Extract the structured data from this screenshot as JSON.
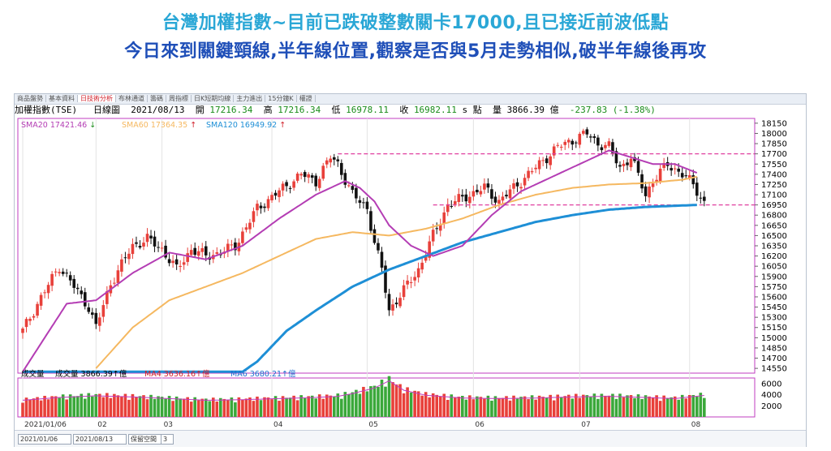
{
  "headline": {
    "line1": "台灣加權指數~目前已跌破整數關卡17000,且已接近前波低點",
    "line2": "今日來到關鍵頸線,半年線位置,觀察是否與5月走勢相似,破半年線後再攻"
  },
  "tabs": [
    "商品盤勢",
    "基本資料",
    "日技術分析",
    "布林通道",
    "籌碼",
    "周指標",
    "日K短期均線",
    "主力進出",
    "15分鐘K",
    "權證"
  ],
  "active_tab": "日技術分析",
  "info": {
    "name": "加權指數(TSE)",
    "period": "日線圖",
    "date": "2021/08/13",
    "open_label": "開",
    "open": "17216.34",
    "high_label": "高",
    "high": "17216.34",
    "low_label": "低",
    "low": "16978.11",
    "close_label": "收",
    "close": "16982.11",
    "unit_label": "s 點",
    "vol_label": "量",
    "vol": "3866.39 億",
    "change": "-237.83 (-1.38%)"
  },
  "legend": {
    "sma20": "SMA20 17421.46",
    "sma20_arrow": "↓",
    "sma60": "SMA60 17364.35",
    "sma60_arrow": "↑",
    "sma120": "SMA120 16949.92",
    "sma120_arrow": "↑"
  },
  "volume_legend": {
    "title": "成交量",
    "vol": "成交量 3866.39↑億",
    "ma4": "MA4 3636.16↑億",
    "ma6": "MA6 3680.21↑億"
  },
  "bottom": {
    "date_label": "2021/01/06",
    "from": "2021/01/06",
    "to": "2021/08/13",
    "mode": "保留空間",
    "mode_num": "3"
  },
  "colors": {
    "up": "#e8403a",
    "down": "#111111",
    "sma20": "#b43db4",
    "sma60": "#f5b860",
    "sma120": "#1e8fd6",
    "dashed": "#e040a0",
    "vol_up": "#e8403a",
    "vol_down": "#3aa83a"
  },
  "chart_data": {
    "type": "candlestick",
    "y_ticks": [
      18150,
      18000,
      17850,
      17700,
      17550,
      17400,
      17250,
      17100,
      16950,
      16800,
      16650,
      16500,
      16350,
      16200,
      16050,
      15900,
      15750,
      15600,
      15450,
      15300,
      15150,
      15000,
      14850,
      14700,
      14550
    ],
    "ylim": [
      14480,
      18220
    ],
    "x_labels": [
      "2021/01/06",
      "02",
      "03",
      "04",
      "05",
      "06",
      "07",
      "08"
    ],
    "x_label_days": [
      0,
      20,
      38,
      68,
      94,
      123,
      152,
      182
    ],
    "total_days": 198,
    "horizontal_lines": [
      17700,
      16950
    ],
    "anchors": [
      [
        0,
        15100
      ],
      [
        4,
        15500
      ],
      [
        10,
        16050
      ],
      [
        14,
        15750
      ],
      [
        18,
        15450
      ],
      [
        20,
        15150
      ],
      [
        24,
        15800
      ],
      [
        30,
        16350
      ],
      [
        34,
        16450
      ],
      [
        38,
        16300
      ],
      [
        42,
        16000
      ],
      [
        46,
        16300
      ],
      [
        50,
        16200
      ],
      [
        54,
        16250
      ],
      [
        58,
        16350
      ],
      [
        64,
        16900
      ],
      [
        70,
        17150
      ],
      [
        76,
        17400
      ],
      [
        80,
        17300
      ],
      [
        84,
        17650
      ],
      [
        86,
        17550
      ],
      [
        90,
        17100
      ],
      [
        94,
        16900
      ],
      [
        96,
        16400
      ],
      [
        98,
        16000
      ],
      [
        100,
        15400
      ],
      [
        104,
        15700
      ],
      [
        108,
        16000
      ],
      [
        112,
        16500
      ],
      [
        116,
        16950
      ],
      [
        122,
        17100
      ],
      [
        126,
        17200
      ],
      [
        130,
        17000
      ],
      [
        134,
        17200
      ],
      [
        138,
        17400
      ],
      [
        142,
        17600
      ],
      [
        146,
        17800
      ],
      [
        150,
        17900
      ],
      [
        154,
        18000
      ],
      [
        157,
        17850
      ],
      [
        160,
        17800
      ],
      [
        163,
        17500
      ],
      [
        166,
        17650
      ],
      [
        170,
        17100
      ],
      [
        172,
        17300
      ],
      [
        176,
        17550
      ],
      [
        180,
        17400
      ],
      [
        183,
        17250
      ],
      [
        186,
        16982
      ]
    ],
    "sma20_anchors": [
      [
        0,
        14500
      ],
      [
        6,
        15000
      ],
      [
        12,
        15500
      ],
      [
        20,
        15550
      ],
      [
        30,
        15950
      ],
      [
        40,
        16250
      ],
      [
        50,
        16150
      ],
      [
        60,
        16350
      ],
      [
        70,
        16750
      ],
      [
        80,
        17100
      ],
      [
        88,
        17300
      ],
      [
        92,
        17200
      ],
      [
        96,
        17000
      ],
      [
        100,
        16650
      ],
      [
        106,
        16350
      ],
      [
        112,
        16200
      ],
      [
        120,
        16350
      ],
      [
        128,
        16800
      ],
      [
        136,
        17150
      ],
      [
        144,
        17350
      ],
      [
        152,
        17550
      ],
      [
        160,
        17750
      ],
      [
        166,
        17650
      ],
      [
        172,
        17550
      ],
      [
        178,
        17550
      ],
      [
        184,
        17421
      ]
    ],
    "sma60_anchors": [
      [
        20,
        14550
      ],
      [
        30,
        15150
      ],
      [
        40,
        15550
      ],
      [
        50,
        15750
      ],
      [
        60,
        15950
      ],
      [
        70,
        16200
      ],
      [
        80,
        16450
      ],
      [
        90,
        16550
      ],
      [
        100,
        16500
      ],
      [
        110,
        16600
      ],
      [
        120,
        16750
      ],
      [
        130,
        16950
      ],
      [
        140,
        17100
      ],
      [
        150,
        17200
      ],
      [
        160,
        17250
      ],
      [
        170,
        17270
      ],
      [
        180,
        17320
      ],
      [
        184,
        17364
      ]
    ],
    "sma120_anchors": [
      [
        0,
        14500
      ],
      [
        60,
        14500
      ],
      [
        64,
        14650
      ],
      [
        72,
        15100
      ],
      [
        80,
        15400
      ],
      [
        90,
        15750
      ],
      [
        100,
        16000
      ],
      [
        110,
        16200
      ],
      [
        120,
        16400
      ],
      [
        130,
        16550
      ],
      [
        140,
        16700
      ],
      [
        150,
        16800
      ],
      [
        160,
        16880
      ],
      [
        170,
        16920
      ],
      [
        184,
        16950
      ]
    ],
    "volume": {
      "ylim": [
        0,
        7000
      ],
      "y_ticks": [
        6000,
        4000,
        2000
      ],
      "anchors": [
        [
          0,
          3000
        ],
        [
          10,
          3500
        ],
        [
          20,
          3800
        ],
        [
          30,
          3600
        ],
        [
          40,
          3300
        ],
        [
          50,
          3000
        ],
        [
          60,
          3100
        ],
        [
          70,
          3300
        ],
        [
          80,
          3500
        ],
        [
          86,
          3700
        ],
        [
          90,
          4200
        ],
        [
          96,
          5200
        ],
        [
          100,
          6500
        ],
        [
          104,
          4800
        ],
        [
          110,
          3900
        ],
        [
          120,
          3400
        ],
        [
          130,
          3300
        ],
        [
          140,
          3400
        ],
        [
          150,
          3600
        ],
        [
          160,
          3700
        ],
        [
          170,
          3500
        ],
        [
          178,
          3300
        ],
        [
          186,
          3866
        ]
      ]
    }
  }
}
